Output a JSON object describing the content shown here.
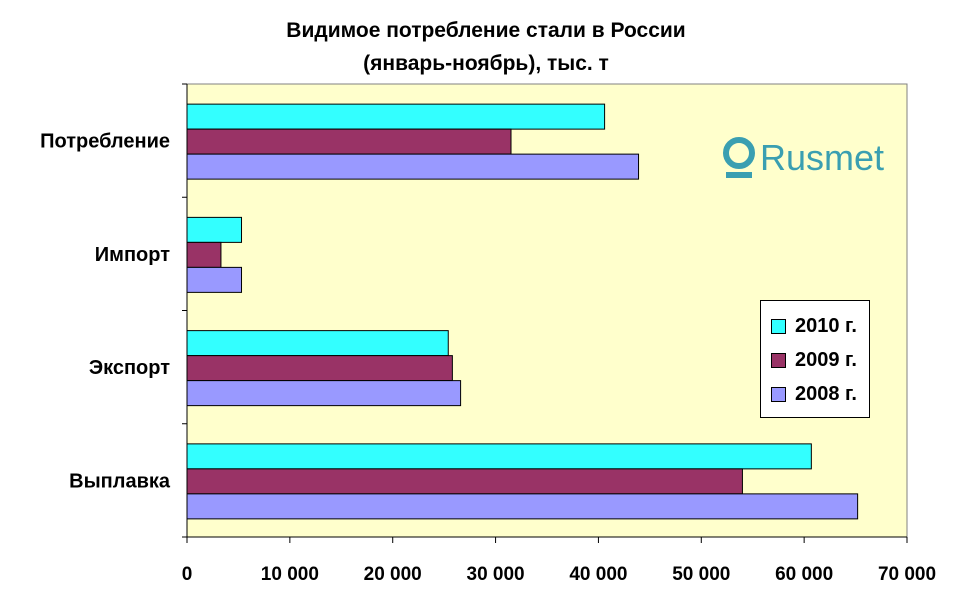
{
  "chart_data": {
    "type": "bar",
    "orientation": "horizontal",
    "title_lines": [
      "Видимое потребление стали в России",
      "(январь-ноябрь), тыс. т"
    ],
    "categories": [
      "Выплавка",
      "Экспорт",
      "Импорт",
      "Потребление"
    ],
    "series": [
      {
        "name": "2010 г.",
        "color": "#33ffff",
        "values": [
          60700,
          25400,
          5300,
          40600
        ]
      },
      {
        "name": "2009 г.",
        "color": "#993366",
        "values": [
          54000,
          25800,
          3300,
          31500
        ]
      },
      {
        "name": "2008 г.",
        "color": "#9999ff",
        "values": [
          65200,
          26600,
          5300,
          43900
        ]
      }
    ],
    "x_ticks": [
      "0",
      "10 000",
      "20 000",
      "30 000",
      "40 000",
      "50 000",
      "60 000",
      "70 000"
    ],
    "xlim": [
      0,
      70000
    ],
    "plot_background": "#ffffcc",
    "grid": false,
    "legend_position": "right"
  },
  "logo": {
    "text": "Rusmet",
    "color": "#3a9fb1"
  }
}
